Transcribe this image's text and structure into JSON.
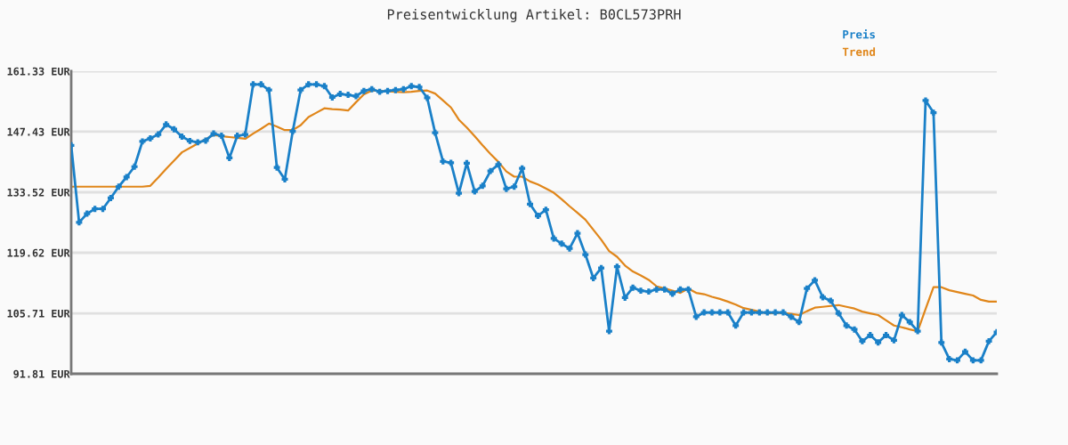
{
  "chart_data": {
    "type": "line",
    "title": "Preisentwicklung Artikel: B0CL573PRH",
    "categories": [
      null,
      null,
      null,
      null,
      null,
      null,
      null,
      null,
      null,
      null,
      null,
      null,
      null,
      null,
      null,
      null,
      null,
      null,
      null,
      null,
      null,
      null,
      null,
      null,
      null,
      null,
      null,
      null,
      null,
      null,
      null,
      null,
      null,
      null,
      null,
      null,
      null,
      null,
      null,
      null,
      null,
      null,
      null,
      null,
      null,
      null,
      null,
      null,
      null,
      null,
      null,
      null,
      null,
      null,
      null,
      null,
      null,
      null,
      null,
      null,
      null,
      null,
      null,
      null,
      null,
      null,
      null,
      null,
      null,
      null,
      null,
      null,
      null,
      null,
      null,
      null,
      null,
      null,
      null,
      null,
      null,
      null,
      null,
      null,
      null,
      null,
      null,
      null,
      null,
      null,
      null,
      null,
      null,
      null,
      null,
      null,
      null,
      null,
      null,
      null,
      null,
      null,
      null,
      null,
      null,
      null,
      null,
      null,
      null,
      null,
      null,
      null,
      null,
      null,
      null,
      null,
      null,
      null
    ],
    "series": [
      {
        "name": "Preis",
        "color": "#1a80c8",
        "marker": "cross",
        "values": [
          144.3,
          126.6,
          128.6,
          129.7,
          129.7,
          132.2,
          134.8,
          137.0,
          139.4,
          145.2,
          145.9,
          146.8,
          149.1,
          148.0,
          146.3,
          145.3,
          145.0,
          145.4,
          147.0,
          146.5,
          141.4,
          146.5,
          146.8,
          158.3,
          158.3,
          157.0,
          139.2,
          136.5,
          147.5,
          157.0,
          158.3,
          158.3,
          157.9,
          155.3,
          156.1,
          155.9,
          155.6,
          156.8,
          157.2,
          156.6,
          156.8,
          157.0,
          157.2,
          157.9,
          157.7,
          155.2,
          147.2,
          140.6,
          140.3,
          133.3,
          140.2,
          133.7,
          135.0,
          138.4,
          139.9,
          134.3,
          134.8,
          139.0,
          130.8,
          128.1,
          129.5,
          122.9,
          121.7,
          120.6,
          124.1,
          119.2,
          113.8,
          116.1,
          101.6,
          116.4,
          109.3,
          111.6,
          110.9,
          110.7,
          111.2,
          111.2,
          110.2,
          111.2,
          111.2,
          104.9,
          105.9,
          105.9,
          105.9,
          105.9,
          102.9,
          105.9,
          105.9,
          105.9,
          105.9,
          105.9,
          105.9,
          104.9,
          103.7,
          111.4,
          113.3,
          109.4,
          108.6,
          105.7,
          102.9,
          102.0,
          99.3,
          100.7,
          99.0,
          100.7,
          99.5,
          105.3,
          103.7,
          101.6,
          154.6,
          151.8,
          99.0,
          95.2,
          94.9,
          96.9,
          94.9,
          94.9,
          99.3,
          101.4
        ]
      },
      {
        "name": "Trend",
        "color": "#e0861a",
        "marker": "none",
        "values": [
          134.8,
          134.8,
          134.8,
          134.8,
          134.8,
          134.8,
          134.8,
          134.8,
          134.8,
          134.8,
          135.0,
          136.9,
          138.9,
          140.8,
          142.7,
          143.7,
          144.7,
          145.7,
          146.7,
          146.4,
          146.2,
          146.0,
          145.8,
          147.0,
          148.1,
          149.3,
          148.6,
          147.8,
          147.8,
          148.9,
          150.8,
          151.8,
          152.8,
          152.6,
          152.5,
          152.3,
          154.2,
          156.0,
          156.9,
          156.8,
          156.7,
          156.6,
          156.5,
          156.6,
          156.8,
          156.9,
          156.2,
          154.6,
          153.0,
          150.2,
          148.4,
          146.4,
          144.3,
          142.3,
          140.5,
          138.3,
          137.1,
          137.1,
          136.0,
          135.3,
          134.4,
          133.4,
          131.9,
          130.3,
          128.8,
          127.2,
          124.9,
          122.6,
          120.0,
          118.7,
          116.7,
          115.3,
          114.4,
          113.4,
          111.9,
          111.4,
          110.9,
          110.4,
          111.4,
          110.4,
          110.1,
          109.5,
          109.0,
          108.4,
          107.7,
          106.9,
          106.5,
          106.1,
          105.7,
          105.8,
          105.8,
          105.6,
          105.3,
          106.2,
          107.0,
          107.2,
          107.4,
          107.6,
          107.2,
          106.8,
          106.1,
          105.7,
          105.3,
          104.1,
          102.9,
          102.5,
          102.0,
          101.6,
          106.7,
          111.7,
          111.7,
          111.0,
          110.6,
          110.2,
          109.8,
          108.8,
          108.4,
          108.4
        ]
      }
    ],
    "ylim": [
      91.81,
      161.33
    ],
    "yticks": [
      {
        "value": 91.81,
        "label": "91.81 EUR"
      },
      {
        "value": 105.71,
        "label": "105.71 EUR"
      },
      {
        "value": 119.62,
        "label": "119.62 EUR"
      },
      {
        "value": 133.52,
        "label": "133.52 EUR"
      },
      {
        "value": 147.43,
        "label": "147.43 EUR"
      },
      {
        "value": 161.33,
        "label": "161.33 EUR"
      }
    ],
    "grid": "y",
    "legend": "top right",
    "tick_labels": "y",
    "line_style": "solid"
  }
}
